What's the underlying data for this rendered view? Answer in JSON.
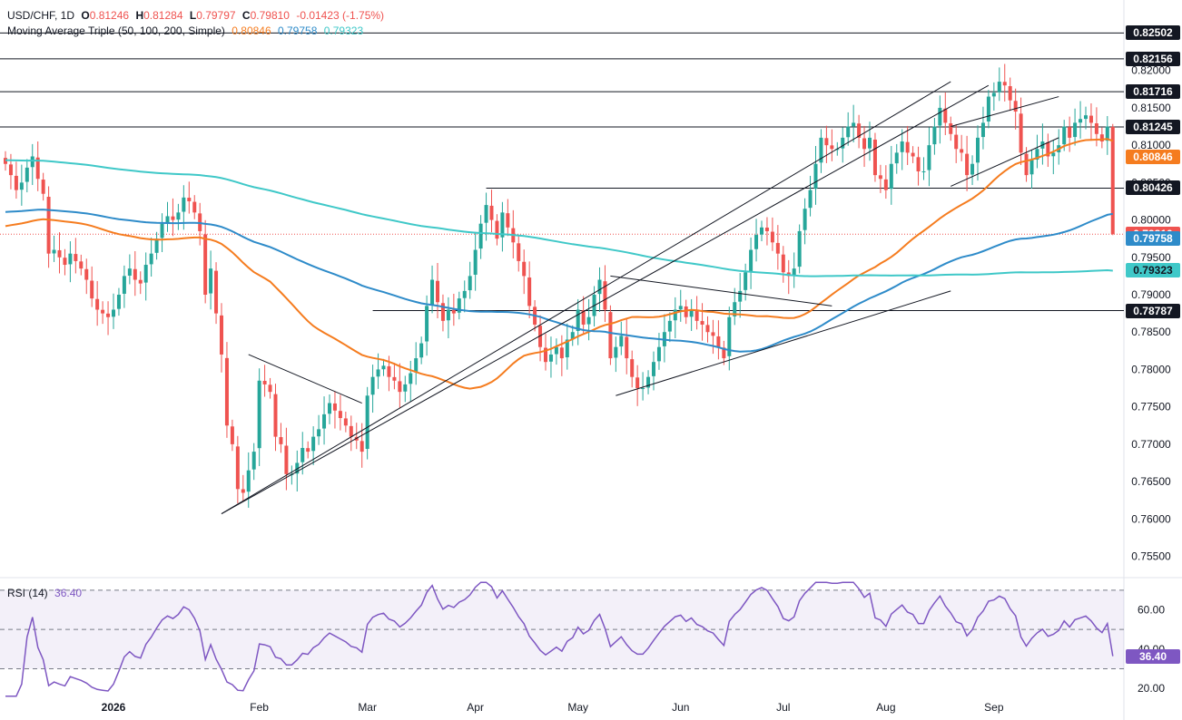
{
  "header": {
    "symbol": "USD/CHF, 1D",
    "open_label": "O",
    "open": "0.81246",
    "high_label": "H",
    "high": "0.81284",
    "low_label": "L",
    "low": "0.79797",
    "close_label": "C",
    "close": "0.79810",
    "change": "-0.01423 (-1.75%)",
    "ma_title": "Moving Average Triple (50, 100, 200, Simple)",
    "ma50": "0.80846",
    "ma100": "0.79758",
    "ma200": "0.79323",
    "rsi_title": "RSI (14)",
    "rsi_value": "36.40"
  },
  "colors": {
    "up": "#26a69a",
    "down": "#ef5350",
    "ma50": "#f57c1f",
    "ma100": "#2e8bc9",
    "ma200": "#3fc8c8",
    "rsi": "#7e57c2",
    "text": "#131722"
  },
  "price_axis": {
    "ticks": [
      "0.82000",
      "0.81500",
      "0.81000",
      "0.80500",
      "0.80000",
      "0.79500",
      "0.79000",
      "0.78500",
      "0.78000",
      "0.77500",
      "0.77000",
      "0.76500",
      "0.76000",
      "0.75500"
    ],
    "tick_values": [
      0.82,
      0.815,
      0.81,
      0.805,
      0.8,
      0.795,
      0.79,
      0.785,
      0.78,
      0.775,
      0.77,
      0.765,
      0.76,
      0.755
    ]
  },
  "rsi_axis": {
    "ticks": [
      "60.00",
      "40.00",
      "20.00"
    ],
    "tick_values": [
      60,
      40,
      20
    ]
  },
  "time_axis": {
    "labels": [
      "2026",
      "Feb",
      "Mar",
      "Apr",
      "May",
      "Jun",
      "Jul",
      "Aug",
      "Sep"
    ],
    "bar_index": [
      20,
      47,
      67,
      87,
      106,
      125,
      144,
      163,
      183
    ]
  },
  "price_tags": [
    {
      "label": "0.82502",
      "value": 0.82502,
      "bg": "#131722",
      "fg": "#ffffff"
    },
    {
      "label": "0.82156",
      "value": 0.82156,
      "bg": "#131722",
      "fg": "#ffffff"
    },
    {
      "label": "0.81716",
      "value": 0.81716,
      "bg": "#131722",
      "fg": "#ffffff"
    },
    {
      "label": "0.81245",
      "value": 0.81245,
      "bg": "#131722",
      "fg": "#ffffff"
    },
    {
      "label": "0.80846",
      "value": 0.80846,
      "bg": "#f57c1f",
      "fg": "#ffffff"
    },
    {
      "label": "0.80426",
      "value": 0.80426,
      "bg": "#131722",
      "fg": "#ffffff"
    },
    {
      "label": "0.79810",
      "value": 0.7981,
      "bg": "#ef5350",
      "fg": "#ffffff"
    },
    {
      "label": "0.79758",
      "value": 0.79758,
      "bg": "#2e8bc9",
      "fg": "#ffffff"
    },
    {
      "label": "0.79323",
      "value": 0.79323,
      "bg": "#3fc8c8",
      "fg": "#131722"
    },
    {
      "label": "0.78787",
      "value": 0.78787,
      "bg": "#131722",
      "fg": "#ffffff"
    }
  ],
  "rsi_tag": {
    "label": "36.40",
    "bg": "#7e57c2",
    "fg": "#ffffff"
  },
  "chart_data": {
    "type": "candlestick",
    "title": "USD/CHF, 1D",
    "ylim": [
      0.753,
      0.827
    ],
    "rsi_ylim": [
      15,
      75
    ],
    "rsi_levels": [
      70,
      50,
      30
    ],
    "horizontal_levels": [
      0.82502,
      0.82156,
      0.81716,
      0.81245,
      0.80426,
      0.78787
    ],
    "close_series": [
      0.8075,
      0.806,
      0.804,
      0.805,
      0.807,
      0.8085,
      0.8055,
      0.8035,
      0.7955,
      0.796,
      0.795,
      0.794,
      0.7955,
      0.7945,
      0.7935,
      0.792,
      0.7895,
      0.788,
      0.7875,
      0.787,
      0.788,
      0.79,
      0.7925,
      0.7935,
      0.792,
      0.7915,
      0.794,
      0.7955,
      0.7975,
      0.7995,
      0.8005,
      0.8,
      0.801,
      0.803,
      0.8025,
      0.801,
      0.7985,
      0.79,
      0.7935,
      0.7875,
      0.782,
      0.7725,
      0.77,
      0.764,
      0.7635,
      0.7665,
      0.769,
      0.7785,
      0.778,
      0.777,
      0.771,
      0.77,
      0.766,
      0.766,
      0.7675,
      0.7695,
      0.769,
      0.771,
      0.772,
      0.774,
      0.7755,
      0.7745,
      0.7735,
      0.7725,
      0.771,
      0.7705,
      0.769,
      0.7765,
      0.779,
      0.78,
      0.7805,
      0.779,
      0.7785,
      0.777,
      0.778,
      0.7795,
      0.7815,
      0.7835,
      0.7885,
      0.792,
      0.789,
      0.7865,
      0.788,
      0.7875,
      0.7895,
      0.7905,
      0.7925,
      0.796,
      0.7995,
      0.802,
      0.8,
      0.7975,
      0.801,
      0.799,
      0.797,
      0.7945,
      0.7925,
      0.7885,
      0.786,
      0.783,
      0.781,
      0.782,
      0.783,
      0.7815,
      0.784,
      0.785,
      0.788,
      0.786,
      0.787,
      0.79,
      0.792,
      0.788,
      0.7815,
      0.783,
      0.7845,
      0.7815,
      0.779,
      0.7775,
      0.7775,
      0.779,
      0.781,
      0.783,
      0.785,
      0.7865,
      0.788,
      0.7885,
      0.787,
      0.788,
      0.7865,
      0.786,
      0.785,
      0.7845,
      0.783,
      0.7815,
      0.787,
      0.789,
      0.7905,
      0.793,
      0.796,
      0.798,
      0.799,
      0.7985,
      0.797,
      0.7955,
      0.793,
      0.7925,
      0.7935,
      0.7985,
      0.8015,
      0.804,
      0.8075,
      0.811,
      0.81,
      0.8095,
      0.8095,
      0.811,
      0.8125,
      0.813,
      0.811,
      0.8095,
      0.811,
      0.806,
      0.8055,
      0.804,
      0.8075,
      0.809,
      0.8105,
      0.809,
      0.8085,
      0.8065,
      0.8065,
      0.81,
      0.8125,
      0.815,
      0.813,
      0.8115,
      0.8095,
      0.809,
      0.806,
      0.8075,
      0.811,
      0.813,
      0.8165,
      0.817,
      0.8185,
      0.818,
      0.816,
      0.8145,
      0.809,
      0.806,
      0.808,
      0.8095,
      0.8105,
      0.8085,
      0.809,
      0.81,
      0.8125,
      0.811,
      0.813,
      0.8135,
      0.814,
      0.813,
      0.8115,
      0.8105,
      0.8125,
      0.7981
    ],
    "last": {
      "open": 0.81246,
      "high": 0.81284,
      "low": 0.79797,
      "close": 0.7981
    },
    "series": [
      {
        "name": "50",
        "color": "#f57c1f",
        "last": 0.80846
      },
      {
        "name": "100",
        "color": "#2e8bc9",
        "last": 0.79758
      },
      {
        "name": "200",
        "color": "#3fc8c8",
        "last": 0.79323
      },
      {
        "name": "RSI (14)",
        "color": "#7e57c2",
        "last": 36.4
      }
    ]
  }
}
